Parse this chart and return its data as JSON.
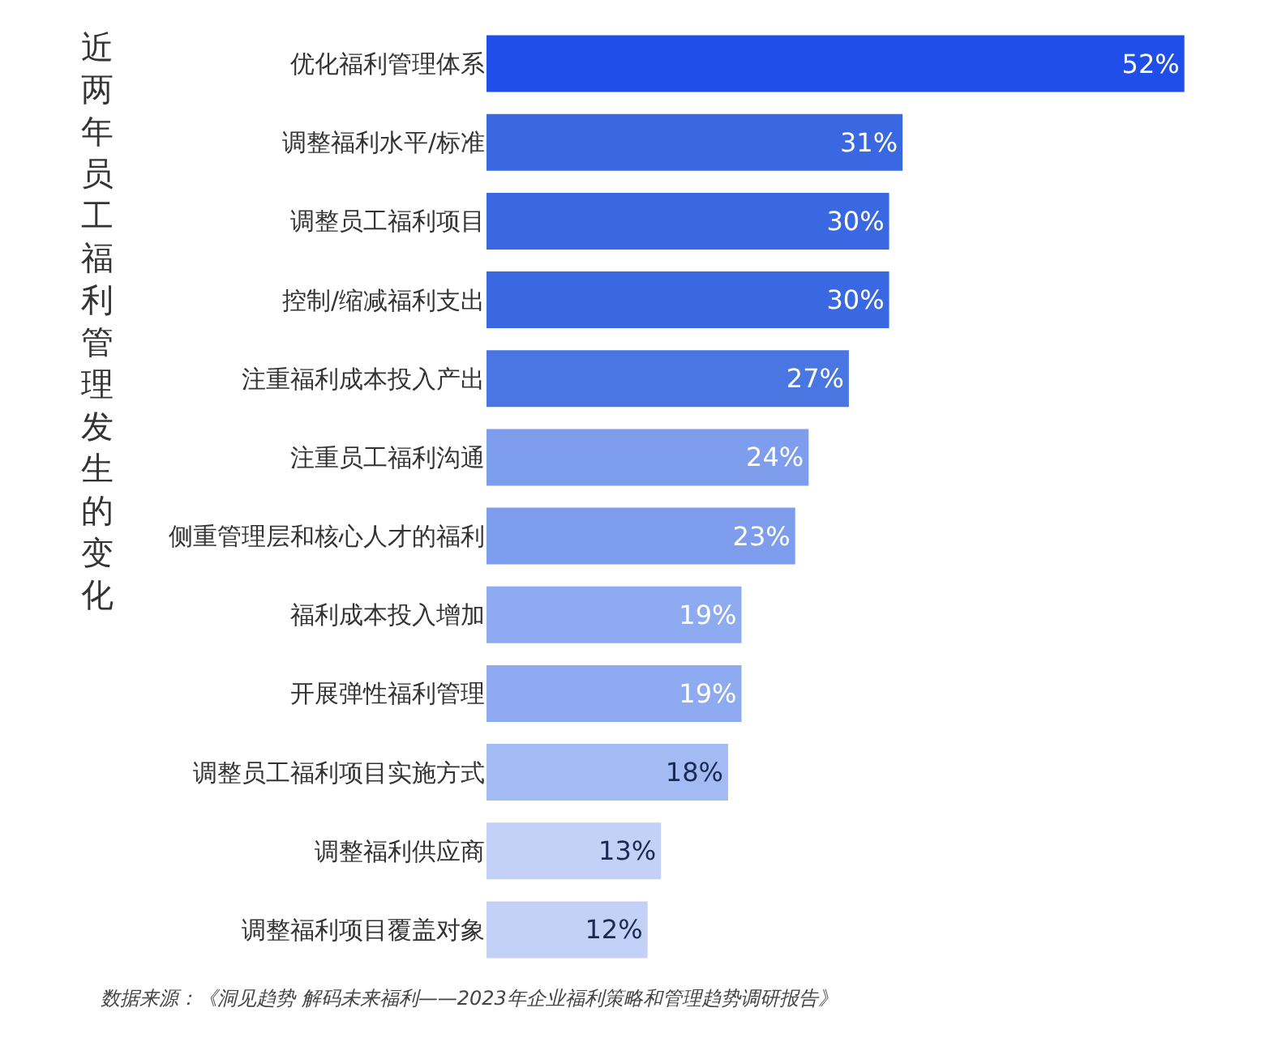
{
  "chart_data": {
    "type": "bar",
    "orientation": "horizontal",
    "title": "近两年员工福利管理发生的变化",
    "categories": [
      "优化福利管理体系",
      "调整福利水平/标准",
      "调整员工福利项目",
      "控制/缩减福利支出",
      "注重福利成本投入产出",
      "注重员工福利沟通",
      "侧重管理层和核心人才的福利",
      "福利成本投入增加",
      "开展弹性福利管理",
      "调整员工福利项目实施方式",
      "调整福利供应商",
      "调整福利项目覆盖对象"
    ],
    "values": [
      52,
      31,
      30,
      30,
      27,
      24,
      23,
      19,
      19,
      18,
      13,
      12
    ],
    "colors": [
      "#1f4fe8",
      "#3a68e2",
      "#3a68e2",
      "#3a68e2",
      "#4a76e2",
      "#7f9ded",
      "#7f9ded",
      "#8eaaf0",
      "#8eaaf0",
      "#a3bbf2",
      "#c3d1f7",
      "#c3d1f7"
    ],
    "value_labels": [
      "52%",
      "31%",
      "30%",
      "30%",
      "27%",
      "24%",
      "23%",
      "19%",
      "19%",
      "18%",
      "13%",
      "12%"
    ],
    "annotations": [
      "数据来源：《洞见趋势 解码未来福利——2023年企业福利策略和管理趋势调研报告》"
    ]
  }
}
